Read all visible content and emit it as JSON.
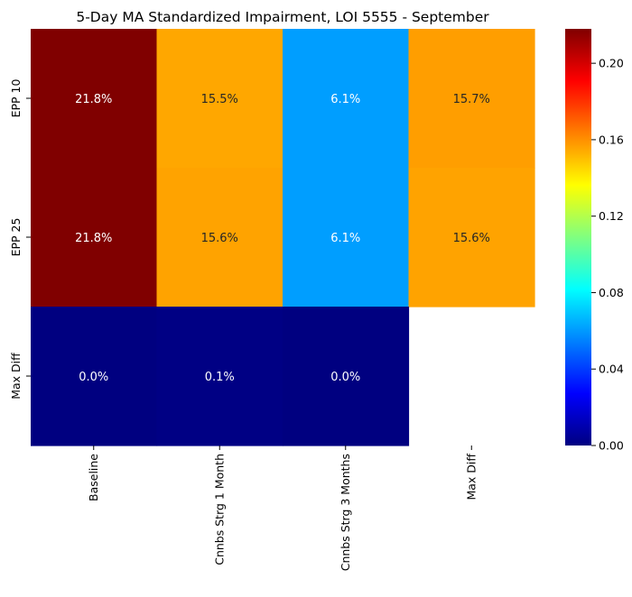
{
  "chart_data": {
    "type": "heatmap",
    "title": "5-Day MA Standardized Impairment, LOI 5555 - September",
    "xlabel": "",
    "ylabel": "",
    "x_categories": [
      "Baseline",
      "Cnnbs Strg 1 Month",
      "Cnnbs Strg 3 Months",
      "Max Diff"
    ],
    "y_categories": [
      "EPP 10",
      "EPP 25",
      "Max Diff"
    ],
    "values": [
      [
        0.218,
        0.155,
        0.061,
        0.157
      ],
      [
        0.218,
        0.156,
        0.061,
        0.156
      ],
      [
        0.0,
        0.001,
        0.0,
        null
      ]
    ],
    "annotations": [
      [
        "21.8%",
        "15.5%",
        "6.1%",
        "15.7%"
      ],
      [
        "21.8%",
        "15.6%",
        "6.1%",
        "15.6%"
      ],
      [
        "0.0%",
        "0.1%",
        "0.0%",
        ""
      ]
    ],
    "colormap": "jet",
    "vmin": 0.0,
    "vmax": 0.218,
    "colorbar_ticks": [
      "0.00",
      "0.04",
      "0.08",
      "0.12",
      "0.16",
      "0.20"
    ],
    "colorbar_tick_values": [
      0.0,
      0.04,
      0.08,
      0.12,
      0.16,
      0.2
    ],
    "grid": false,
    "legend": "colorbar-right"
  }
}
